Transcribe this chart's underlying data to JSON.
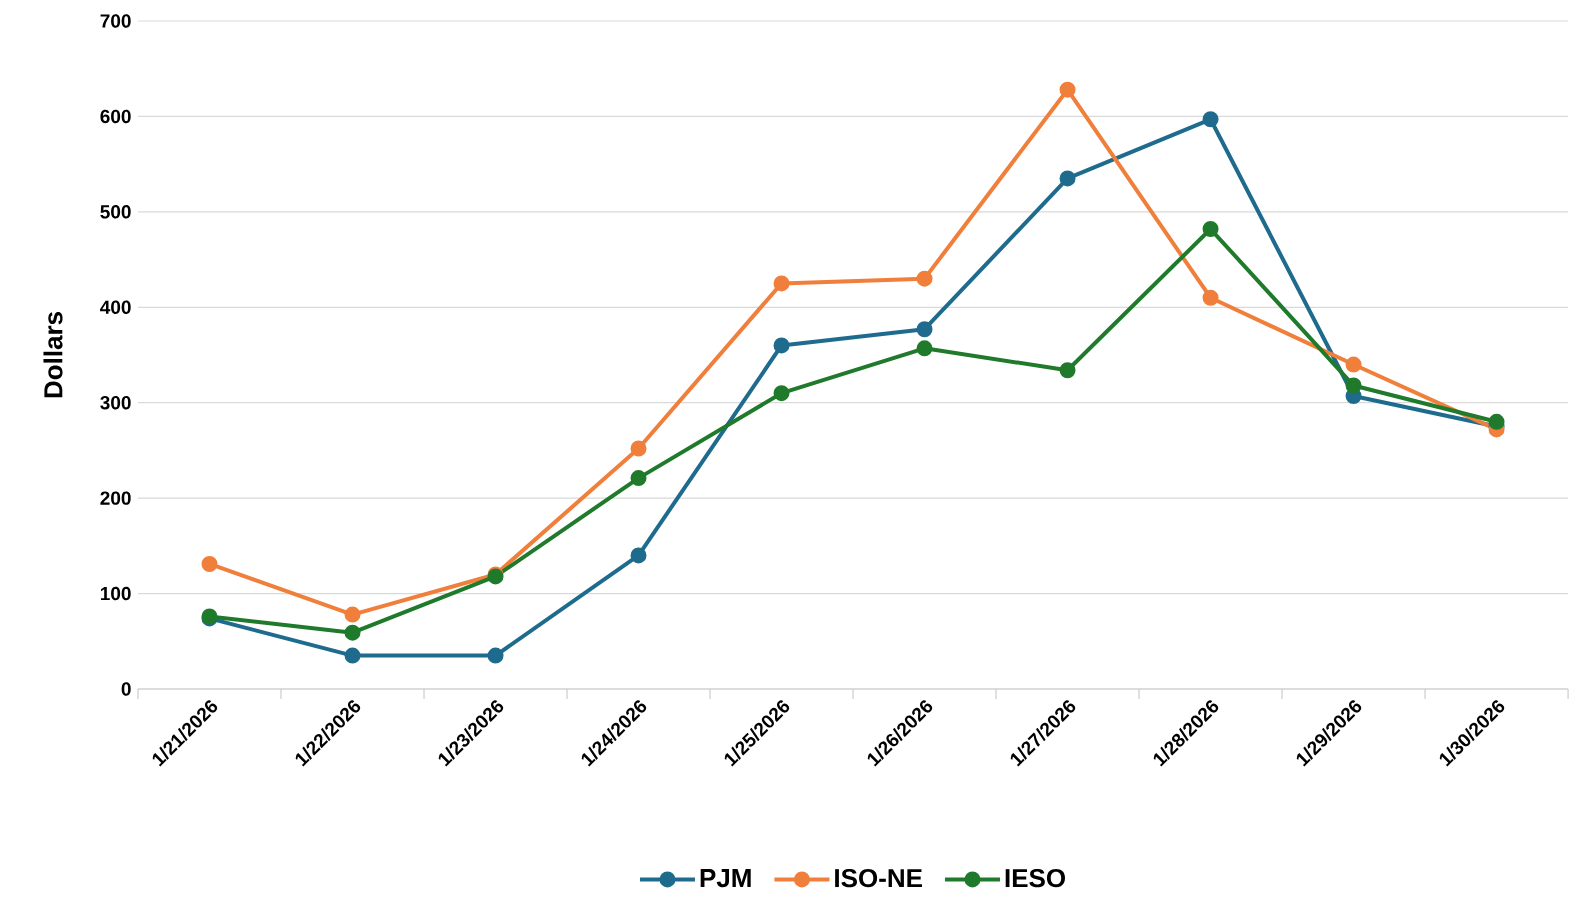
{
  "chart_data": {
    "type": "line",
    "ylabel": "Dollars",
    "categories": [
      "1/21/2026",
      "1/22/2026",
      "1/23/2026",
      "1/24/2026",
      "1/25/2026",
      "1/26/2026",
      "1/27/2026",
      "1/28/2026",
      "1/29/2026",
      "1/30/2026"
    ],
    "series": [
      {
        "name": "PJM",
        "color": "#1f6b8e",
        "values": [
          74,
          35,
          35,
          140,
          360,
          377,
          535,
          597,
          307,
          275
        ]
      },
      {
        "name": "ISO-NE",
        "color": "#f07f3c",
        "values": [
          131,
          78,
          120,
          252,
          425,
          430,
          628,
          410,
          340,
          272
        ]
      },
      {
        "name": "IESO",
        "color": "#1f7a2b",
        "values": [
          76,
          59,
          118,
          221,
          310,
          357,
          334,
          482,
          318,
          280
        ]
      }
    ],
    "ylim": [
      0,
      700
    ],
    "yticks": [
      0,
      100,
      200,
      300,
      400,
      500,
      600,
      700
    ],
    "grid": "y",
    "legend": "bottom",
    "marker": "circle",
    "line_style": "solid"
  }
}
